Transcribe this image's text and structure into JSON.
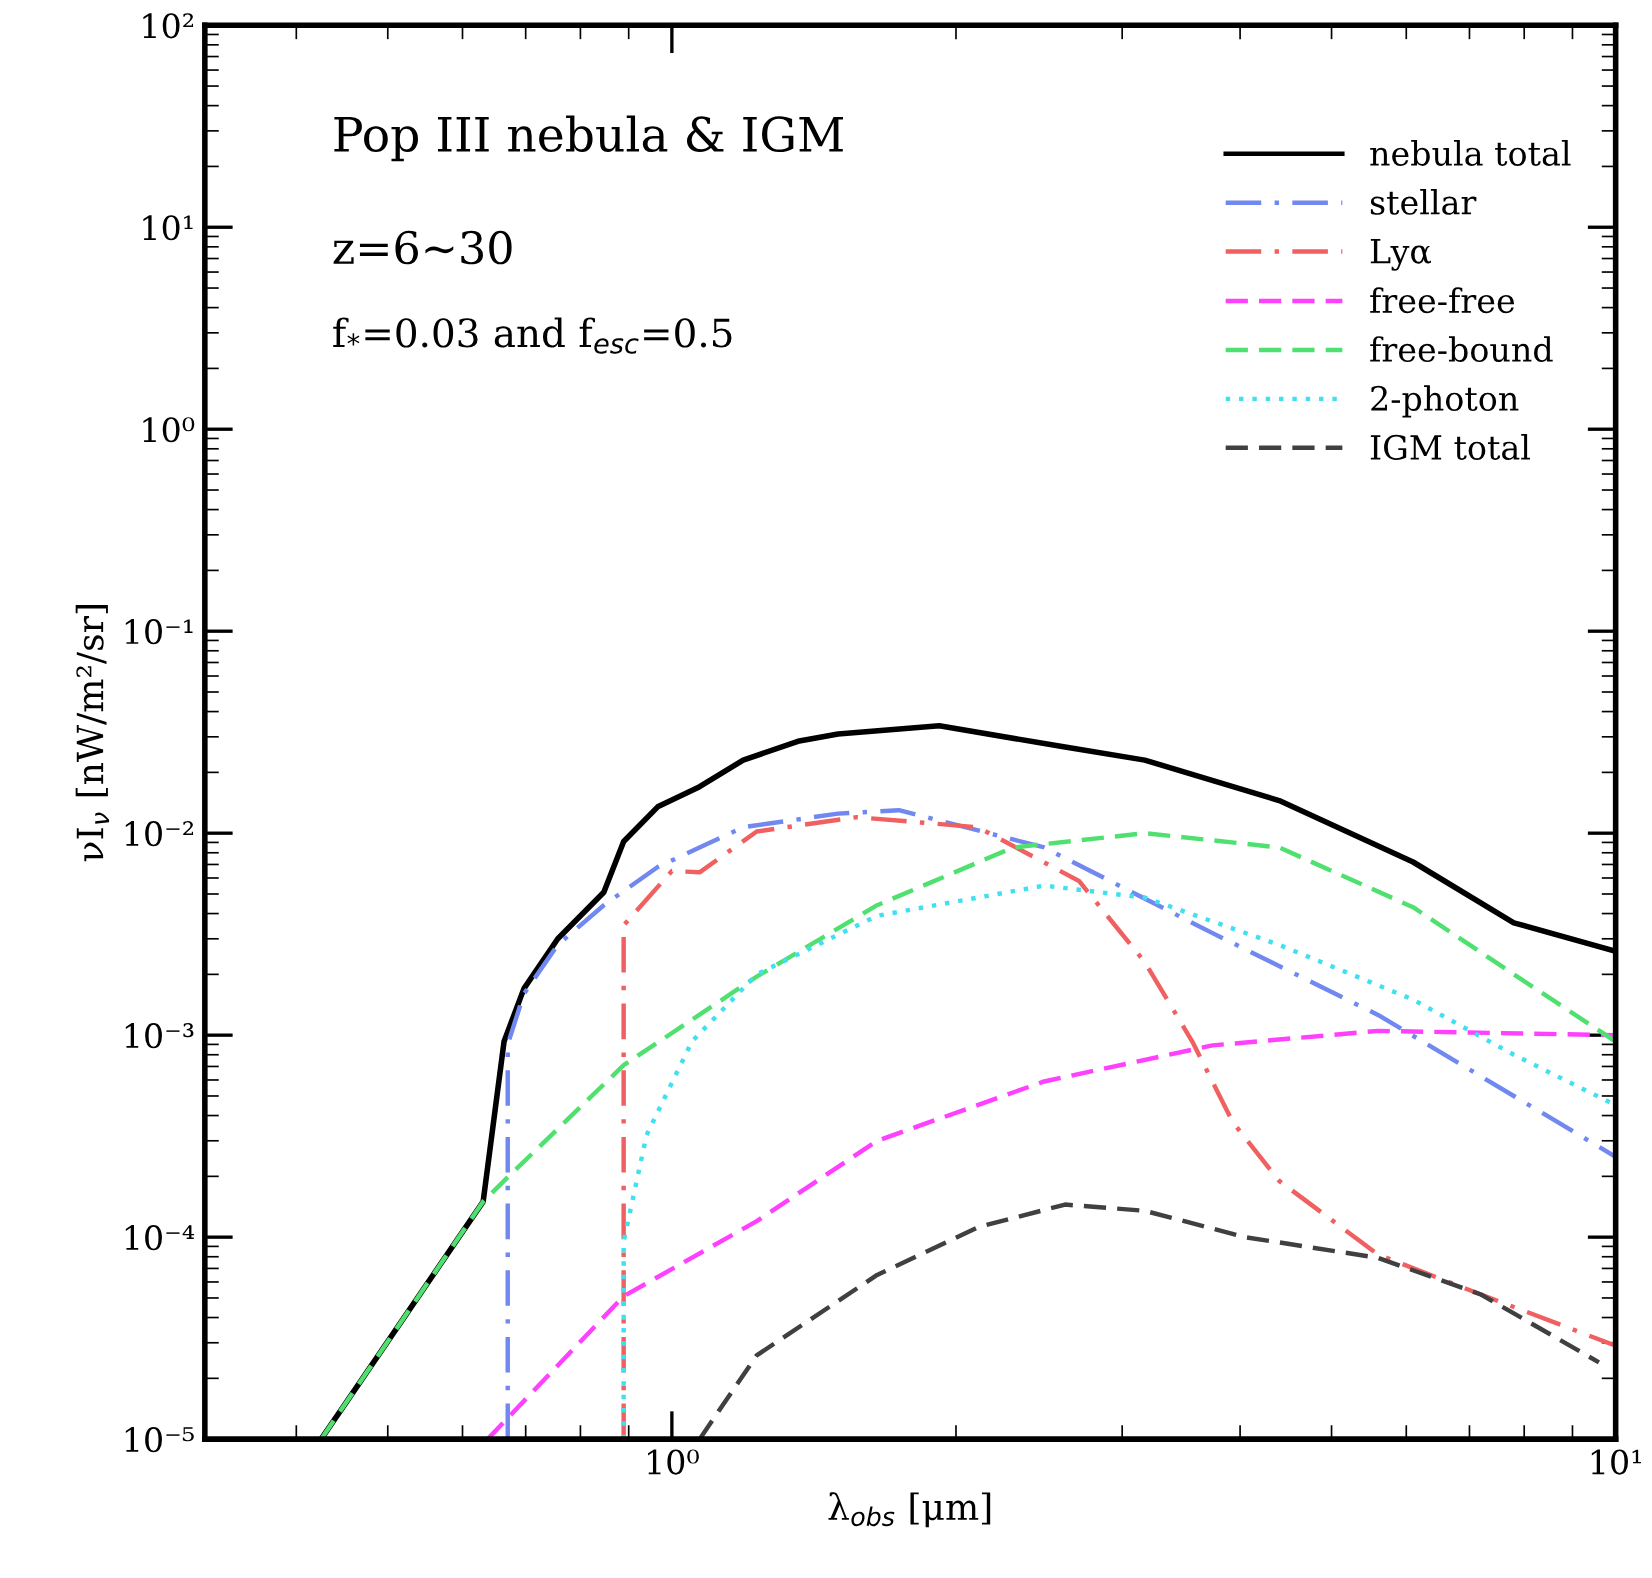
{
  "chart_data": {
    "type": "line",
    "xlabel": "λ$_{obs}$ [μm]",
    "ylabel": "νI$_{ν}$ [nW/m²/sr]",
    "annotations": [
      "Pop III nebula & IGM",
      "z=6~30",
      "f$_{*}$=0.03 and f$_{esc}$=0.5"
    ],
    "log": "xy",
    "xlim": [
      0.32,
      10
    ],
    "ylim": [
      1e-05,
      100
    ],
    "xticks": [
      {
        "value": 1,
        "label": "10⁰"
      },
      {
        "value": 10,
        "label": "10¹"
      }
    ],
    "yticks": [
      {
        "value": 1e-05,
        "label": "10⁻⁵"
      },
      {
        "value": 0.0001,
        "label": "10⁻⁴"
      },
      {
        "value": 0.001,
        "label": "10⁻³"
      },
      {
        "value": 0.01,
        "label": "10⁻²"
      },
      {
        "value": 0.1,
        "label": "10⁻¹"
      },
      {
        "value": 1,
        "label": "10⁰"
      },
      {
        "value": 10,
        "label": "10¹"
      },
      {
        "value": 100,
        "label": "10²"
      }
    ],
    "grid": false,
    "legend": "top right",
    "series": [
      {
        "name": "nebula total",
        "color": "#000000",
        "line_style": "solid",
        "x": [
          0.425,
          0.631,
          0.664,
          0.697,
          0.757,
          0.847,
          0.889,
          0.966,
          1.07,
          1.19,
          1.36,
          1.5,
          1.92,
          2.61,
          3.17,
          4.4,
          6.1,
          7.8,
          10
        ],
        "values": [
          1e-05,
          0.00015,
          0.00093,
          0.0017,
          0.003,
          0.0051,
          0.0091,
          0.0135,
          0.017,
          0.023,
          0.0285,
          0.031,
          0.034,
          0.0267,
          0.023,
          0.0145,
          0.0072,
          0.0036,
          0.0026
        ]
      },
      {
        "name": "stellar",
        "color": "#7088f0",
        "line_style": "dashdot",
        "x": [
          0.67,
          0.67,
          0.697,
          0.757,
          0.847,
          0.966,
          1.19,
          1.5,
          1.74,
          2.48,
          3.74,
          5.6,
          7.8,
          10
        ],
        "values": [
          1e-05,
          0.0009,
          0.0016,
          0.0028,
          0.0044,
          0.0068,
          0.0107,
          0.0125,
          0.013,
          0.0085,
          0.0032,
          0.00126,
          0.0005,
          0.00025
        ]
      },
      {
        "name": "Lyα",
        "color": "#f06060",
        "line_style": "dashdot",
        "x": [
          0.889,
          0.889,
          1.0,
          1.07,
          1.23,
          1.57,
          2.11,
          2.7,
          3.17,
          3.56,
          3.93,
          4.4,
          5.6,
          7.2,
          10
        ],
        "values": [
          1e-05,
          0.0035,
          0.0065,
          0.0064,
          0.0102,
          0.012,
          0.0107,
          0.0058,
          0.0023,
          0.00093,
          0.00037,
          0.00019,
          8.2e-05,
          5.2e-05,
          2.9e-05
        ]
      },
      {
        "name": "free-free",
        "color": "#ff40ff",
        "line_style": "dashed",
        "x": [
          0.638,
          0.889,
          1.23,
          1.65,
          2.48,
          3.74,
          5.6,
          10
        ],
        "values": [
          1e-05,
          5.1e-05,
          0.00012,
          0.0003,
          0.00059,
          0.00089,
          0.00105,
          0.001
        ]
      },
      {
        "name": "free-bound",
        "color": "#50e070",
        "line_style": "dashed",
        "x": [
          0.425,
          0.631,
          0.664,
          0.889,
          1.23,
          1.65,
          2.3,
          3.17,
          4.4,
          6.1,
          7.8,
          10
        ],
        "values": [
          1e-05,
          0.00015,
          0.00019,
          0.00071,
          0.00195,
          0.0044,
          0.0085,
          0.01,
          0.0085,
          0.0043,
          0.002,
          0.00093
        ]
      },
      {
        "name": "2-photon",
        "color": "#40e0f0",
        "line_style": "dotted",
        "x": [
          0.889,
          0.889,
          0.94,
          1.05,
          1.23,
          1.65,
          2.48,
          3.17,
          4.4,
          6.1,
          7.8,
          10
        ],
        "values": [
          1e-05,
          9.5e-05,
          0.00032,
          0.00093,
          0.002,
          0.0039,
          0.0055,
          0.0048,
          0.0028,
          0.0015,
          0.0008,
          0.00045
        ]
      },
      {
        "name": "IGM total",
        "color": "#404040",
        "line_style": "dashed",
        "x": [
          1.07,
          1.23,
          1.65,
          2.11,
          2.61,
          3.17,
          4.05,
          5.6,
          7.2,
          9.6
        ],
        "values": [
          1e-05,
          2.6e-05,
          6.5e-05,
          0.000112,
          0.000145,
          0.000135,
          0.0001,
          7.9e-05,
          5.2e-05,
          2.4e-05
        ]
      }
    ]
  }
}
